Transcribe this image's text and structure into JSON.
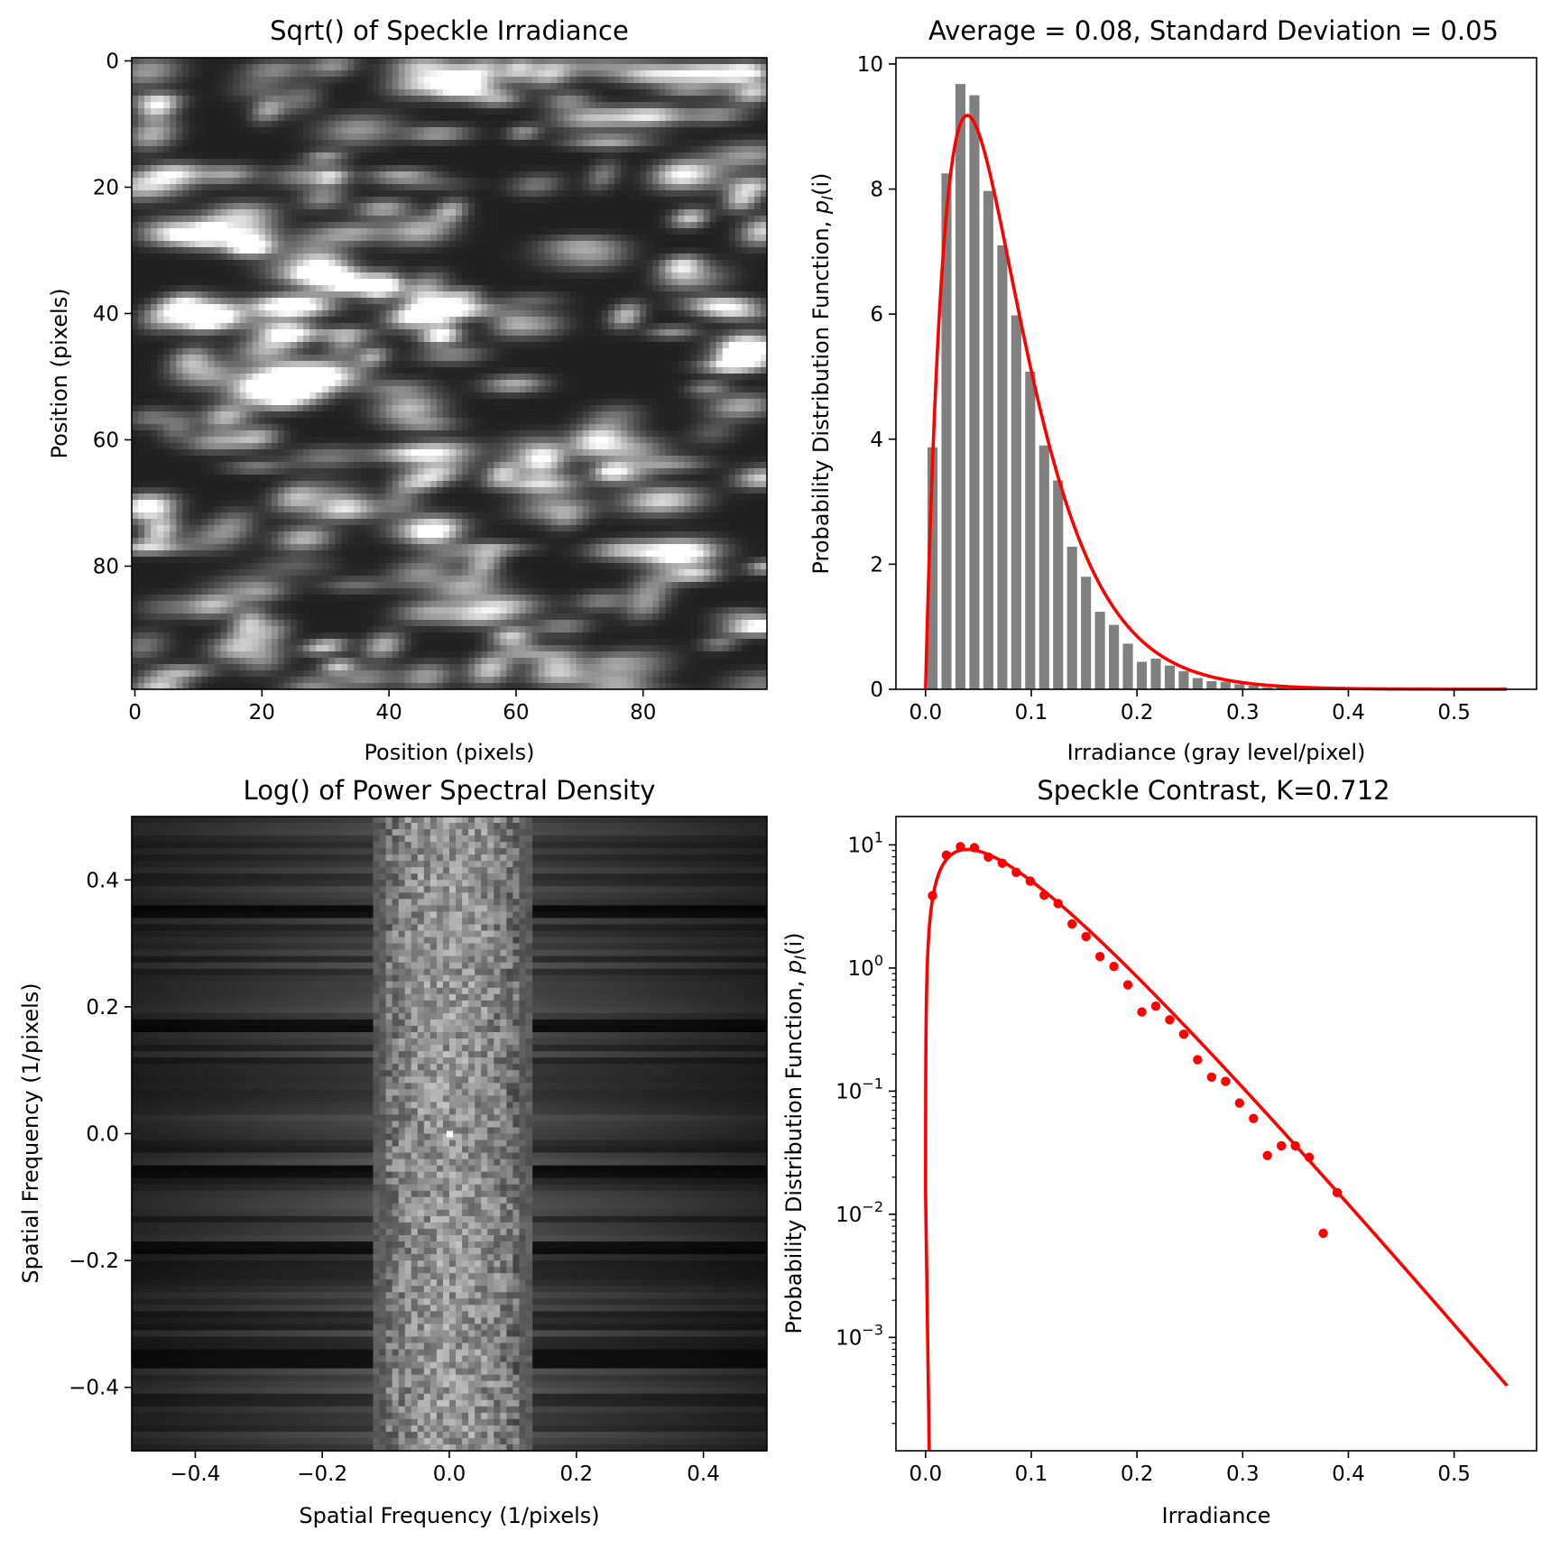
{
  "chart_data": [
    {
      "id": "speckle",
      "type": "heatmap",
      "title": "Sqrt() of Speckle Irradiance",
      "xlabel": "Position (pixels)",
      "ylabel": "Position (pixels)",
      "xlim": [
        -0.5,
        99.5
      ],
      "ylim": [
        99.5,
        -0.5
      ],
      "xticks": [
        0,
        20,
        40,
        60,
        80
      ],
      "yticks": [
        0,
        20,
        40,
        60,
        80
      ],
      "xtick_labels": [
        "0",
        "20",
        "40",
        "60",
        "80"
      ],
      "ytick_labels": [
        "0",
        "20",
        "40",
        "60",
        "80"
      ],
      "colormap": "gray"
    },
    {
      "id": "histogram",
      "type": "bar",
      "title": "Average = 0.08, Standard Deviation = 0.05",
      "xlabel": "Irradiance (gray level/pixel)",
      "ylabel_main": "Probability Distribution Function, ",
      "ylabel_sym": "p",
      "ylabel_sub": "I",
      "ylabel_arg": "(i)",
      "xlim": [
        -0.028,
        0.578
      ],
      "ylim": [
        0,
        10.1
      ],
      "xticks": [
        0,
        0.1,
        0.2,
        0.3,
        0.4,
        0.5
      ],
      "xtick_labels": [
        "0.0",
        "0.1",
        "0.2",
        "0.3",
        "0.4",
        "0.5"
      ],
      "yticks": [
        0,
        2,
        4,
        6,
        8,
        10
      ],
      "ytick_labels": [
        "0",
        "2",
        "4",
        "6",
        "8",
        "10"
      ],
      "bar_color": "#808080",
      "bar_width": 0.0095,
      "x": [
        0.0066,
        0.0198,
        0.033,
        0.0462,
        0.0594,
        0.0726,
        0.0858,
        0.099,
        0.1122,
        0.1254,
        0.1386,
        0.1518,
        0.165,
        0.1782,
        0.1914,
        0.2046,
        0.2178,
        0.231,
        0.2442,
        0.2574,
        0.2706,
        0.2838,
        0.297,
        0.3102,
        0.3234,
        0.3366,
        0.3498,
        0.363,
        0.3762,
        0.3894,
        0.4026
      ],
      "values": [
        3.87,
        8.25,
        9.68,
        9.5,
        7.97,
        7.1,
        5.98,
        5.08,
        3.9,
        3.34,
        2.28,
        1.8,
        1.24,
        1.03,
        0.73,
        0.44,
        0.49,
        0.38,
        0.29,
        0.18,
        0.13,
        0.12,
        0.08,
        0.06,
        0.03,
        0.036,
        0.036,
        0.029,
        0.007,
        0.015,
        0.005
      ],
      "curve_color": "#ff0000",
      "curve_model": "gamma pdf, mean 0.08, contrast 0.712, x from 0 to 0.55"
    },
    {
      "id": "psd",
      "type": "heatmap",
      "title": "Log() of Power Spectral Density",
      "xlabel": "Spatial Frequency (1/pixels)",
      "ylabel": "Spatial Frequency (1/pixels)",
      "xlim": [
        -0.5,
        0.5
      ],
      "ylim": [
        -0.5,
        0.5
      ],
      "xticks": [
        -0.4,
        -0.2,
        0,
        0.2,
        0.4
      ],
      "xtick_labels": [
        "−0.4",
        "−0.2",
        "0.0",
        "0.2",
        "0.4"
      ],
      "yticks": [
        0.4,
        0.2,
        0,
        -0.2,
        -0.4
      ],
      "ytick_labels": [
        "0.4",
        "0.2",
        "0.0",
        "−0.2",
        "−0.4"
      ],
      "colormap": "gray"
    },
    {
      "id": "contrast",
      "type": "scatter",
      "title": "Speckle Contrast, K=0.712",
      "xlabel": "Irradiance",
      "ylabel_main": "Probability Distribution Function, ",
      "ylabel_sym": "p",
      "ylabel_sub": "I",
      "ylabel_arg": "(i)",
      "yscale": "log",
      "xlim": [
        -0.028,
        0.578
      ],
      "ylim": [
        0.00012,
        17
      ],
      "xticks": [
        0,
        0.1,
        0.2,
        0.3,
        0.4,
        0.5
      ],
      "xtick_labels": [
        "0.0",
        "0.1",
        "0.2",
        "0.3",
        "0.4",
        "0.5"
      ],
      "ytick_bases": [
        "10",
        "10",
        "10",
        "10",
        "10"
      ],
      "ytick_exps": [
        "1",
        "0",
        "−1",
        "−2",
        "−3"
      ],
      "ytick_values": [
        10,
        1,
        0.1,
        0.01,
        0.001
      ],
      "point_color": "#ff0000",
      "curve_color": "#ff0000",
      "x": [
        0.0066,
        0.0198,
        0.033,
        0.0462,
        0.0594,
        0.0726,
        0.0858,
        0.099,
        0.1122,
        0.1254,
        0.1386,
        0.1518,
        0.165,
        0.1782,
        0.1914,
        0.2046,
        0.2178,
        0.231,
        0.2442,
        0.2574,
        0.2706,
        0.2838,
        0.297,
        0.3102,
        0.3234,
        0.3366,
        0.3498,
        0.363,
        0.3762,
        0.3894,
        0.4026
      ],
      "values": [
        3.87,
        8.25,
        9.68,
        9.5,
        7.97,
        7.1,
        5.98,
        5.08,
        3.9,
        3.34,
        2.28,
        1.8,
        1.24,
        1.03,
        0.73,
        0.44,
        0.49,
        0.38,
        0.29,
        0.18,
        0.13,
        0.12,
        0.08,
        0.06,
        0.03,
        0.036,
        0.036,
        0.029,
        0.007,
        0.015,
        null
      ]
    }
  ]
}
